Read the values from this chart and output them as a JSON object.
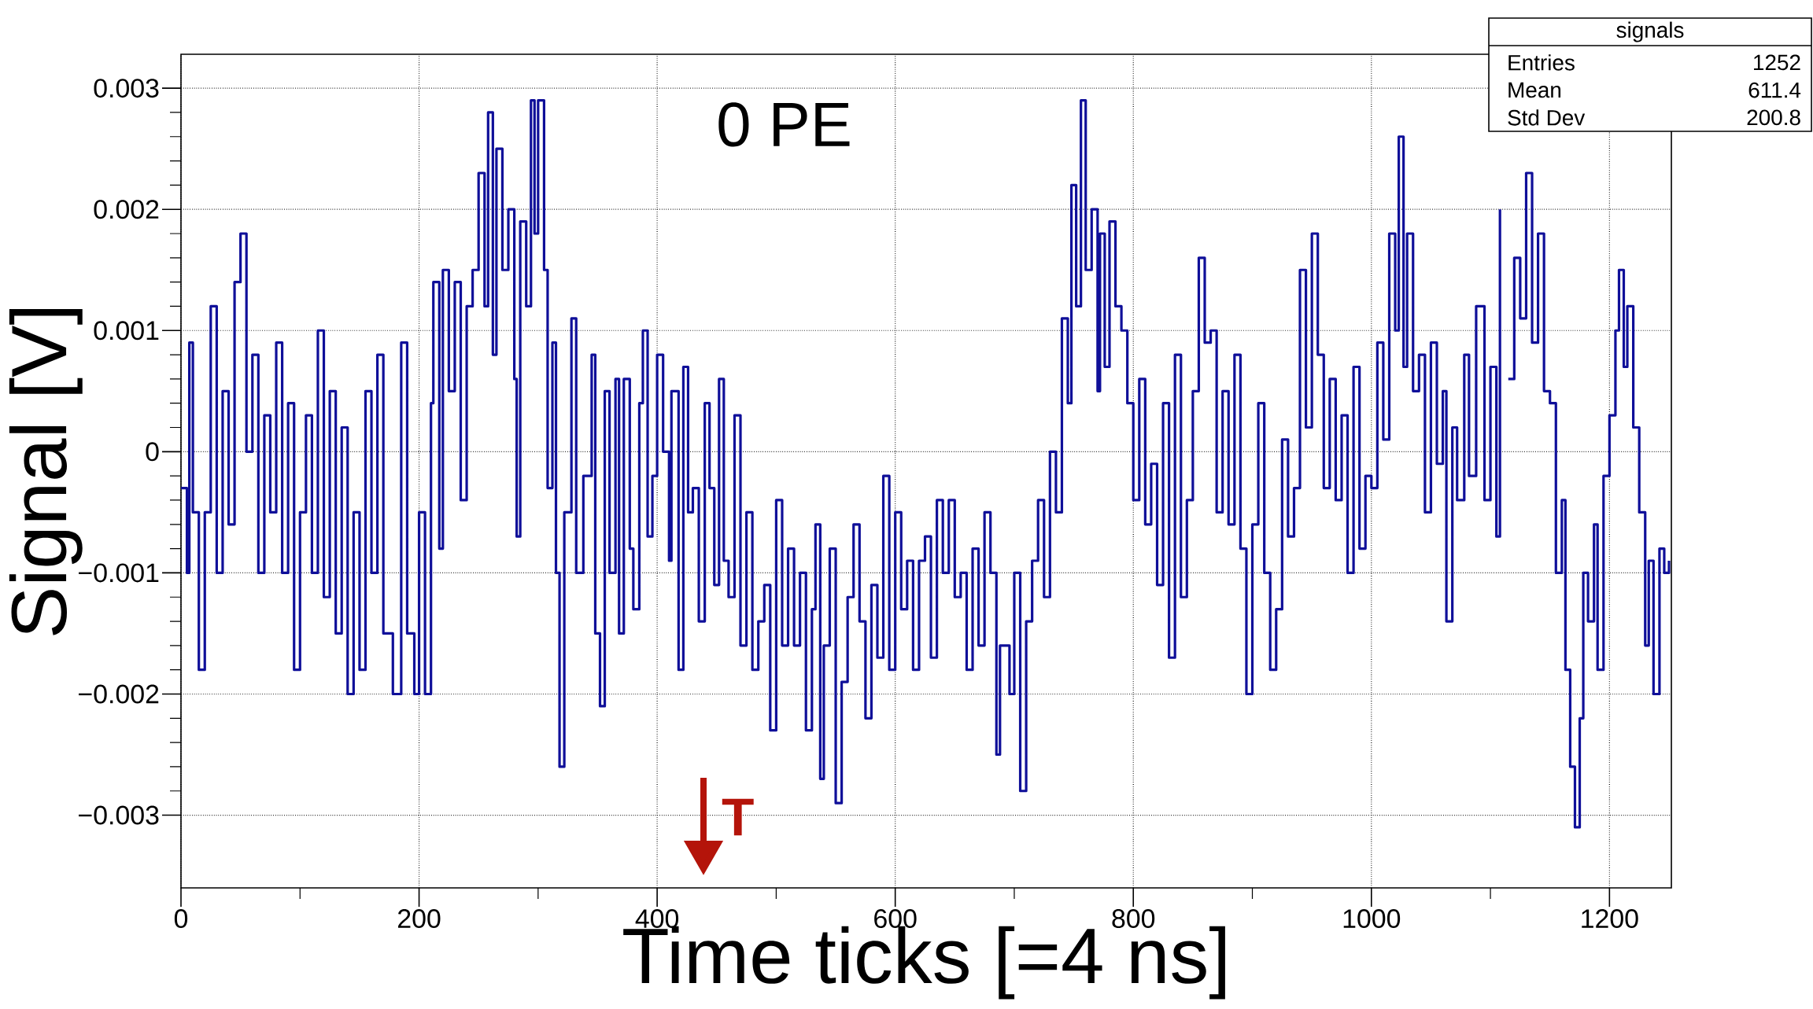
{
  "chart_data": {
    "type": "step",
    "xlabel": "Time ticks [=4 ns]",
    "ylabel": "Signal [V]",
    "xlim": [
      0,
      1252
    ],
    "ylim": [
      -0.0036,
      0.00328
    ],
    "xticks": [
      0,
      200,
      400,
      600,
      800,
      1000,
      1200
    ],
    "yticks": [
      {
        "value": -0.003,
        "label": "−0.003"
      },
      {
        "value": -0.002,
        "label": "−0.002"
      },
      {
        "value": -0.001,
        "label": "−0.001"
      },
      {
        "value": 0,
        "label": "0"
      },
      {
        "value": 0.001,
        "label": "0.001"
      },
      {
        "value": 0.002,
        "label": "0.002"
      },
      {
        "value": 0.003,
        "label": "0.003"
      }
    ],
    "grid": true,
    "annotations": [
      "0 PE",
      "T",
      "signals",
      "Entries",
      "1252",
      "Mean",
      "611.4",
      "Std Dev",
      "200.8"
    ],
    "series": [
      {
        "color": "#0f0f99",
        "x": [
          0,
          5,
          7,
          10,
          15,
          20,
          25,
          30,
          35,
          40,
          45,
          50,
          55,
          60,
          65,
          70,
          75,
          80,
          85,
          90,
          95,
          100,
          105,
          110,
          115,
          120,
          125,
          130,
          135,
          140,
          145,
          150,
          155,
          160,
          165,
          170,
          178,
          185,
          190,
          196,
          200,
          205,
          210,
          212,
          217,
          220,
          225,
          230,
          235,
          240,
          245,
          250,
          255,
          258,
          262,
          265,
          270,
          275,
          280,
          282,
          285,
          290,
          294,
          297,
          300,
          305,
          308,
          312,
          315,
          318,
          322,
          328,
          332,
          338,
          345,
          348,
          352,
          356,
          360,
          365,
          368,
          372,
          377,
          380,
          385,
          388,
          392,
          396,
          400,
          405,
          410,
          412,
          418,
          422,
          426,
          430,
          435,
          440,
          444,
          448,
          452,
          456,
          460,
          465,
          470,
          475,
          480,
          485,
          490,
          495,
          500,
          505,
          510,
          515,
          520,
          525,
          530,
          533,
          537,
          540,
          545,
          550,
          555,
          560,
          565,
          570,
          575,
          580,
          585,
          590,
          595,
          600,
          605,
          610,
          615,
          620,
          625,
          630,
          635,
          640,
          645,
          650,
          655,
          660,
          665,
          670,
          675,
          680,
          685,
          688,
          692,
          696,
          700,
          705,
          710,
          715,
          720,
          725,
          730,
          735,
          740,
          745,
          748,
          752,
          756,
          760,
          765,
          770,
          772,
          776,
          780,
          785,
          790,
          795,
          800,
          805,
          810,
          815,
          820,
          825,
          830,
          835,
          840,
          845,
          850,
          855,
          860,
          865,
          870,
          875,
          880,
          885,
          890,
          895,
          900,
          905,
          910,
          915,
          920,
          925,
          930,
          935,
          940,
          945,
          950,
          955,
          960,
          965,
          970,
          975,
          980,
          985,
          990,
          995,
          1000,
          1005,
          1010,
          1015,
          1020,
          1023,
          1027,
          1030,
          1035,
          1040,
          1045,
          1050,
          1055,
          1060,
          1063,
          1068,
          1072,
          1078,
          1082,
          1088,
          1092,
          1095,
          1100,
          1105,
          1108,
          1111,
          1115,
          1120,
          1125,
          1130,
          1135,
          1140,
          1145,
          1150,
          1155,
          1160,
          1163,
          1167,
          1171,
          1175,
          1178,
          1182,
          1187,
          1190,
          1195,
          1200,
          1205,
          1208,
          1212,
          1215,
          1220,
          1225,
          1230,
          1233,
          1237,
          1242,
          1246,
          1250
        ],
        "values": [
          -0.0003,
          -0.001,
          0.0009,
          -0.0005,
          -0.0018,
          -0.0005,
          0.0012,
          -0.001,
          0.0005,
          -0.0006,
          0.0014,
          0.0018,
          0,
          0.0008,
          -0.001,
          0.0003,
          -0.0005,
          0.0009,
          -0.001,
          0.0004,
          -0.0018,
          -0.0005,
          0.0003,
          -0.001,
          0.001,
          -0.0012,
          0.0005,
          -0.0015,
          0.0002,
          -0.002,
          -0.0005,
          -0.0018,
          0.0005,
          -0.001,
          0.0008,
          -0.0015,
          -0.002,
          0.0009,
          -0.0015,
          -0.002,
          -0.0005,
          -0.002,
          0.0004,
          0.0014,
          -0.0008,
          0.0015,
          0.0005,
          0.0014,
          -0.0004,
          0.0012,
          0.0015,
          0.0023,
          0.0012,
          0.0028,
          0.0008,
          0.0025,
          0.0015,
          0.002,
          0.0006,
          -0.0007,
          0.0019,
          0.0012,
          0.0029,
          0.0018,
          0.0029,
          0.0015,
          -0.0003,
          0.0009,
          -0.001,
          -0.0026,
          -0.0005,
          0.0011,
          -0.001,
          -0.0002,
          0.0008,
          -0.0015,
          -0.0021,
          0.0005,
          -0.001,
          0.0006,
          -0.0015,
          0.0006,
          -0.0008,
          -0.0013,
          0.0004,
          0.001,
          -0.0007,
          -0.0002,
          0.0008,
          0,
          -0.0009,
          0.0005,
          -0.0018,
          0.0007,
          -0.0005,
          -0.0003,
          -0.0014,
          0.0004,
          -0.0003,
          -0.0011,
          0.0006,
          -0.0009,
          -0.0012,
          0.0003,
          -0.0016,
          -0.0005,
          -0.0018,
          -0.0014,
          -0.0011,
          -0.0023,
          -0.0004,
          -0.0016,
          -0.0008,
          -0.0016,
          -0.001,
          -0.0023,
          -0.0013,
          -0.0006,
          -0.0027,
          -0.0016,
          -0.0008,
          -0.0029,
          -0.0019,
          -0.0012,
          -0.0006,
          -0.0014,
          -0.0022,
          -0.0011,
          -0.0017,
          -0.0002,
          -0.0018,
          -0.0005,
          -0.0013,
          -0.0009,
          -0.0018,
          -0.0009,
          -0.0007,
          -0.0017,
          -0.0004,
          -0.001,
          -0.0004,
          -0.0012,
          -0.001,
          -0.0018,
          -0.0008,
          -0.0016,
          -0.0005,
          -0.001,
          -0.0025,
          -0.0016,
          -0.0016,
          -0.002,
          -0.001,
          -0.0028,
          -0.0014,
          -0.0009,
          -0.0004,
          -0.0012,
          0,
          -0.0005,
          0.0011,
          0.0004,
          0.0022,
          0.0012,
          0.0029,
          0.0015,
          0.002,
          0.0005,
          0.0018,
          0.0007,
          0.0019,
          0.0012,
          0.001,
          0.0004,
          -0.0004,
          0.0006,
          -0.0006,
          -0.0001,
          -0.0011,
          0.0004,
          -0.0017,
          0.0008,
          -0.0012,
          -0.0004,
          0.0005,
          0.0016,
          0.0009,
          0.001,
          -0.0005,
          0.0005,
          -0.0006,
          0.0008,
          -0.0008,
          -0.002,
          -0.0006,
          0.0004,
          -0.001,
          -0.0018,
          -0.0013,
          0.0001,
          -0.0007,
          -0.0003,
          0.0015,
          0.0002,
          0.0018,
          0.0008,
          -0.0003,
          0.0006,
          -0.0004,
          0.0003,
          -0.001,
          0.0007,
          -0.0008,
          -0.0002,
          -0.0003,
          0.0009,
          0.0001,
          0.0018,
          0.001,
          0.0026,
          0.0007,
          0.0018,
          0.0005,
          0.0008,
          -0.0005,
          0.0009,
          -0.0001,
          0.0005,
          -0.0014,
          0.0002,
          -0.0004,
          0.0008,
          -0.0002,
          0.0012,
          0.0012,
          -0.0004,
          0.0007,
          -0.0007,
          0.002,
          null,
          0.0006,
          0.0016,
          0.0011,
          0.0023,
          0.0009,
          0.0018,
          0.0005,
          0.0004,
          -0.001,
          -0.0004,
          -0.0018,
          -0.0026,
          -0.0031,
          -0.0022,
          -0.001,
          -0.0014,
          -0.0006,
          -0.0018,
          -0.0002,
          0.0003,
          0.001,
          0.0015,
          0.0007,
          0.0012,
          0.0002,
          -0.0005,
          -0.0016,
          -0.0009,
          -0.002,
          -0.0008,
          -0.001,
          -0.0009
        ]
      }
    ]
  }
}
